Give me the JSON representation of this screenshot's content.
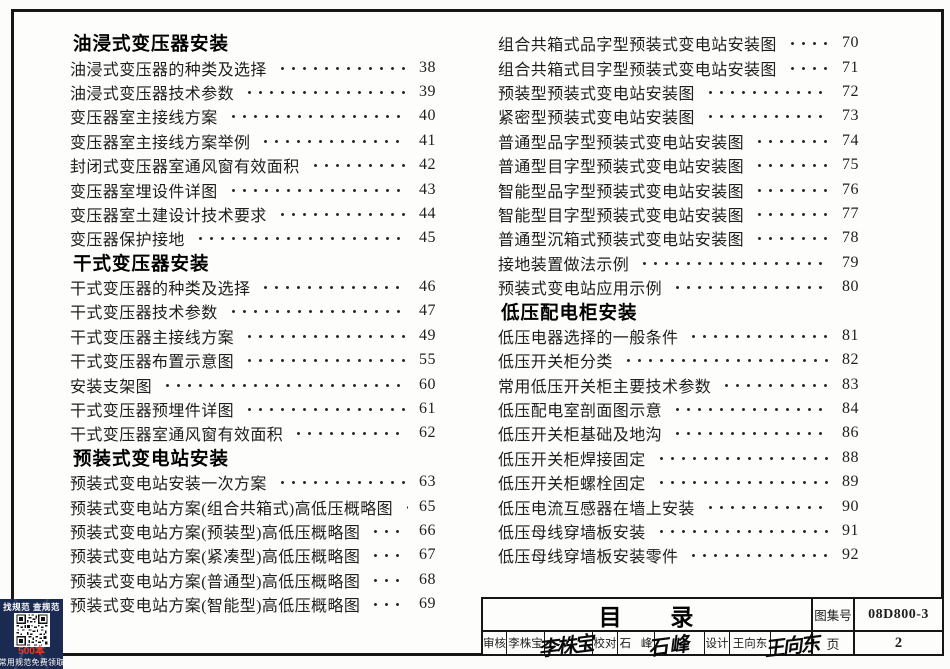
{
  "document": {
    "left_column": {
      "sections": [
        {
          "heading": "油浸式变压器安装",
          "items": [
            {
              "title": "油浸式变压器的种类及选择",
              "page": "38"
            },
            {
              "title": "油浸式变压器技术参数",
              "page": "39"
            },
            {
              "title": "变压器室主接线方案",
              "page": "40"
            },
            {
              "title": "变压器室主接线方案举例",
              "page": "41"
            },
            {
              "title": "封闭式变压器室通风窗有效面积",
              "page": "42"
            },
            {
              "title": "变压器室埋设件详图",
              "page": "43"
            },
            {
              "title": "变压器室土建设计技术要求",
              "page": "44"
            },
            {
              "title": "变压器保护接地",
              "page": "45"
            }
          ]
        },
        {
          "heading": "干式变压器安装",
          "items": [
            {
              "title": "干式变压器的种类及选择",
              "page": "46"
            },
            {
              "title": "干式变压器技术参数",
              "page": "47"
            },
            {
              "title": "干式变压器主接线方案",
              "page": "49"
            },
            {
              "title": "干式变压器布置示意图",
              "page": "55"
            },
            {
              "title": "安装支架图",
              "page": "60"
            },
            {
              "title": "干式变压器预埋件详图",
              "page": "61"
            },
            {
              "title": "干式变压器室通风窗有效面积",
              "page": "62"
            }
          ]
        },
        {
          "heading": "预装式变电站安装",
          "items": [
            {
              "title": "预装式变电站安装一次方案",
              "page": "63"
            },
            {
              "title": "预装式变电站方案(组合共箱式)高低压概略图",
              "page": "65"
            },
            {
              "title": "预装式变电站方案(预装型)高低压概略图",
              "page": "66"
            },
            {
              "title": "预装式变电站方案(紧凑型)高低压概略图",
              "page": "67"
            },
            {
              "title": "预装式变电站方案(普通型)高低压概略图",
              "page": "68"
            },
            {
              "title": "预装式变电站方案(智能型)高低压概略图",
              "page": "69"
            }
          ]
        }
      ]
    },
    "right_column": {
      "sections": [
        {
          "heading": "",
          "items": [
            {
              "title": "组合共箱式品字型预装式变电站安装图",
              "page": "70"
            },
            {
              "title": "组合共箱式目字型预装式变电站安装图",
              "page": "71"
            },
            {
              "title": "预装型预装式变电站安装图",
              "page": "72"
            },
            {
              "title": "紧密型预装式变电站安装图",
              "page": "73"
            },
            {
              "title": "普通型品字型预装式变电站安装图",
              "page": "74"
            },
            {
              "title": "普通型目字型预装式变电站安装图",
              "page": "75"
            },
            {
              "title": "智能型品字型预装式变电站安装图",
              "page": "76"
            },
            {
              "title": "智能型目字型预装式变电站安装图",
              "page": "77"
            },
            {
              "title": "普通型沉箱式预装式变电站安装图",
              "page": "78"
            },
            {
              "title": "接地装置做法示例",
              "page": "79"
            },
            {
              "title": "预装式变电站应用示例",
              "page": "80"
            }
          ]
        },
        {
          "heading": "低压配电柜安装",
          "items": [
            {
              "title": "低压电器选择的一般条件",
              "page": "81"
            },
            {
              "title": "低压开关柜分类",
              "page": "82"
            },
            {
              "title": "常用低压开关柜主要技术参数",
              "page": "83"
            },
            {
              "title": "低压配电室剖面图示意",
              "page": "84"
            },
            {
              "title": "低压开关柜基础及地沟",
              "page": "86"
            },
            {
              "title": "低压开关柜焊接固定",
              "page": "88"
            },
            {
              "title": "低压开关柜螺栓固定",
              "page": "89"
            },
            {
              "title": "低压电流互感器在墙上安装",
              "page": "90"
            },
            {
              "title": "低压母线穿墙板安装",
              "page": "91"
            },
            {
              "title": "低压母线穿墙板安装零件",
              "page": "92"
            }
          ]
        }
      ]
    }
  },
  "title_block": {
    "title": "目 录",
    "atlas_no_label": "图集号",
    "atlas_no": "08D800-3",
    "page_label": "页",
    "page_no": "2",
    "reviewer_label": "审核",
    "reviewer_name": "李株宝",
    "reviewer_signature": "李株宝",
    "checker_label": "校对",
    "checker_name": "石 峰",
    "checker_signature": "石 峰",
    "designer_label": "设计",
    "designer_name": "王向东",
    "designer_signature": "王向东"
  },
  "badge": {
    "top_text": "找规范 查规范",
    "count_text": "500本",
    "bottom_text": "常用规范免费领取",
    "background_color": "#1b2a50",
    "count_color": "#e8392b"
  },
  "colors": {
    "ink": "#161616",
    "paper": "#fdfdfb"
  }
}
